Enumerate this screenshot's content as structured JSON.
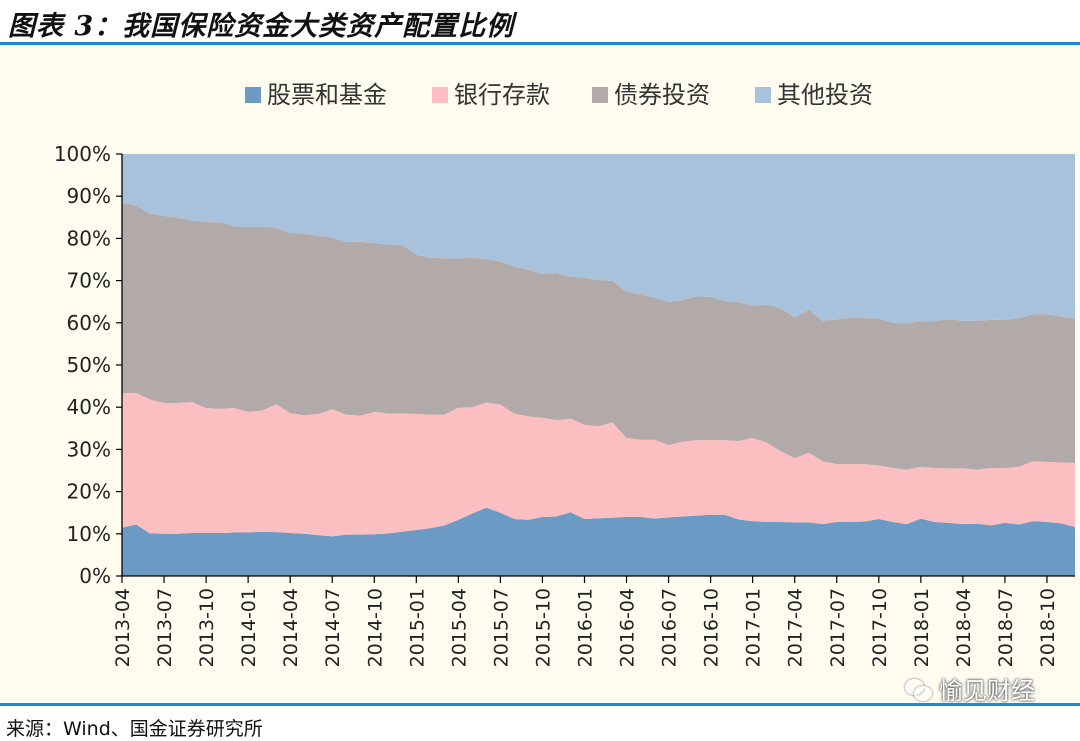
{
  "title": "图表 3：我国保险资金大类资产配置比例",
  "source": "来源：Wind、国金证券研究所",
  "watermark": {
    "icon": "wechat-icon",
    "text": "愉见财经"
  },
  "colors": {
    "stocks": "#6b9ac4",
    "deposits": "#fcbfc1",
    "bonds": "#b2a9a9",
    "other": "#a8c2db",
    "rule": "#1e8ad6",
    "panel": "#fefbef"
  },
  "chart_data": {
    "type": "area",
    "stacked": true,
    "legend_position": "top",
    "ylim": [
      0,
      100
    ],
    "yticks": [
      "0%",
      "10%",
      "20%",
      "30%",
      "40%",
      "50%",
      "60%",
      "70%",
      "80%",
      "90%",
      "100%"
    ],
    "xticks": [
      "2013-04",
      "2013-07",
      "2013-10",
      "2014-01",
      "2014-04",
      "2014-07",
      "2014-10",
      "2015-01",
      "2015-04",
      "2015-07",
      "2015-10",
      "2016-01",
      "2016-04",
      "2016-07",
      "2016-10",
      "2017-01",
      "2017-04",
      "2017-07",
      "2017-10",
      "2018-01",
      "2018-04",
      "2018-07",
      "2018-10"
    ],
    "x": [
      "2013-04",
      "2013-05",
      "2013-06",
      "2013-07",
      "2013-08",
      "2013-09",
      "2013-10",
      "2013-11",
      "2013-12",
      "2014-01",
      "2014-02",
      "2014-03",
      "2014-04",
      "2014-05",
      "2014-06",
      "2014-07",
      "2014-08",
      "2014-09",
      "2014-10",
      "2014-11",
      "2014-12",
      "2015-01",
      "2015-02",
      "2015-03",
      "2015-04",
      "2015-05",
      "2015-06",
      "2015-07",
      "2015-08",
      "2015-09",
      "2015-10",
      "2015-11",
      "2015-12",
      "2016-01",
      "2016-02",
      "2016-03",
      "2016-04",
      "2016-05",
      "2016-06",
      "2016-07",
      "2016-08",
      "2016-09",
      "2016-10",
      "2016-11",
      "2016-12",
      "2017-01",
      "2017-02",
      "2017-03",
      "2017-04",
      "2017-05",
      "2017-06",
      "2017-07",
      "2017-08",
      "2017-09",
      "2017-10",
      "2017-11",
      "2017-12",
      "2018-01",
      "2018-02",
      "2018-03",
      "2018-04",
      "2018-05",
      "2018-06",
      "2018-07",
      "2018-08",
      "2018-09",
      "2018-10",
      "2018-11",
      "2018-12"
    ],
    "series": [
      {
        "name": "股票和基金",
        "color": "#6b9ac4",
        "values": [
          11.5,
          12.2,
          10.1,
          10.0,
          10.0,
          10.2,
          10.2,
          10.2,
          10.3,
          10.3,
          10.5,
          10.4,
          10.2,
          10.0,
          9.7,
          9.4,
          9.8,
          9.8,
          9.9,
          10.1,
          10.5,
          10.9,
          11.3,
          12.0,
          13.3,
          14.8,
          16.2,
          15.0,
          13.5,
          13.3,
          14.0,
          14.1,
          15.1,
          13.5,
          13.7,
          13.8,
          14.0,
          14.0,
          13.6,
          13.9,
          14.1,
          14.3,
          14.5,
          14.5,
          13.4,
          13.0,
          12.8,
          12.8,
          12.7,
          12.7,
          12.3,
          12.8,
          12.8,
          12.9,
          13.5,
          12.8,
          12.3,
          13.6,
          12.8,
          12.6,
          12.3,
          12.4,
          12.0,
          12.6,
          12.2,
          13.0,
          12.8,
          12.5,
          11.6
        ]
      },
      {
        "name": "银行存款",
        "color": "#fcbfc1",
        "values": [
          31.8,
          31.2,
          31.7,
          31.0,
          31.0,
          31.0,
          29.6,
          29.4,
          29.5,
          28.6,
          28.7,
          30.3,
          28.4,
          28.1,
          28.7,
          30.1,
          28.4,
          28.2,
          29.0,
          28.4,
          28.0,
          27.5,
          26.9,
          26.2,
          26.6,
          25.2,
          24.9,
          25.6,
          25.0,
          24.5,
          23.5,
          22.8,
          22.2,
          22.3,
          21.8,
          22.6,
          18.7,
          18.3,
          18.7,
          17.1,
          17.7,
          17.9,
          17.7,
          17.7,
          18.6,
          19.7,
          18.8,
          16.8,
          15.2,
          16.5,
          14.9,
          13.7,
          13.7,
          13.6,
          12.7,
          12.8,
          12.9,
          12.3,
          12.8,
          12.9,
          13.2,
          12.8,
          13.6,
          13.0,
          13.7,
          14.2,
          14.2,
          14.4,
          15.2
        ]
      },
      {
        "name": "债券投资",
        "color": "#b2a9a9",
        "values": [
          45.2,
          44.3,
          44.1,
          44.3,
          43.9,
          43.0,
          44.1,
          44.2,
          43.1,
          43.8,
          43.6,
          41.8,
          42.7,
          43.0,
          42.2,
          40.7,
          41.0,
          41.2,
          40.0,
          40.0,
          39.9,
          37.7,
          37.2,
          37.1,
          35.3,
          35.4,
          34.0,
          34.0,
          34.8,
          34.7,
          34.1,
          34.9,
          33.6,
          34.9,
          34.6,
          33.5,
          34.7,
          34.4,
          33.7,
          33.9,
          33.5,
          34.1,
          33.9,
          32.9,
          32.9,
          31.3,
          32.7,
          33.9,
          33.3,
          33.9,
          33.3,
          34.3,
          34.7,
          34.6,
          34.8,
          34.4,
          34.6,
          34.5,
          34.8,
          35.3,
          35.0,
          35.3,
          35.1,
          35.1,
          35.2,
          34.8,
          35.0,
          34.6,
          34.2
        ]
      },
      {
        "name": "其他投资",
        "color": "#a8c2db",
        "values": [
          11.5,
          12.3,
          14.1,
          14.7,
          15.1,
          15.8,
          16.1,
          16.2,
          17.1,
          17.3,
          17.2,
          17.5,
          18.7,
          18.9,
          19.4,
          19.8,
          20.8,
          20.8,
          21.1,
          21.5,
          21.6,
          23.9,
          24.6,
          24.7,
          24.8,
          24.6,
          24.9,
          25.4,
          26.7,
          27.5,
          28.4,
          28.2,
          29.1,
          29.3,
          29.9,
          30.1,
          32.6,
          33.3,
          34.0,
          35.1,
          34.7,
          33.7,
          33.9,
          34.9,
          35.1,
          36.0,
          35.7,
          36.5,
          38.8,
          36.9,
          39.5,
          39.2,
          38.8,
          38.9,
          39.0,
          40.0,
          40.2,
          39.6,
          39.6,
          39.2,
          39.5,
          39.5,
          39.3,
          39.3,
          38.9,
          38.0,
          38.0,
          38.5,
          39.0
        ]
      }
    ]
  }
}
